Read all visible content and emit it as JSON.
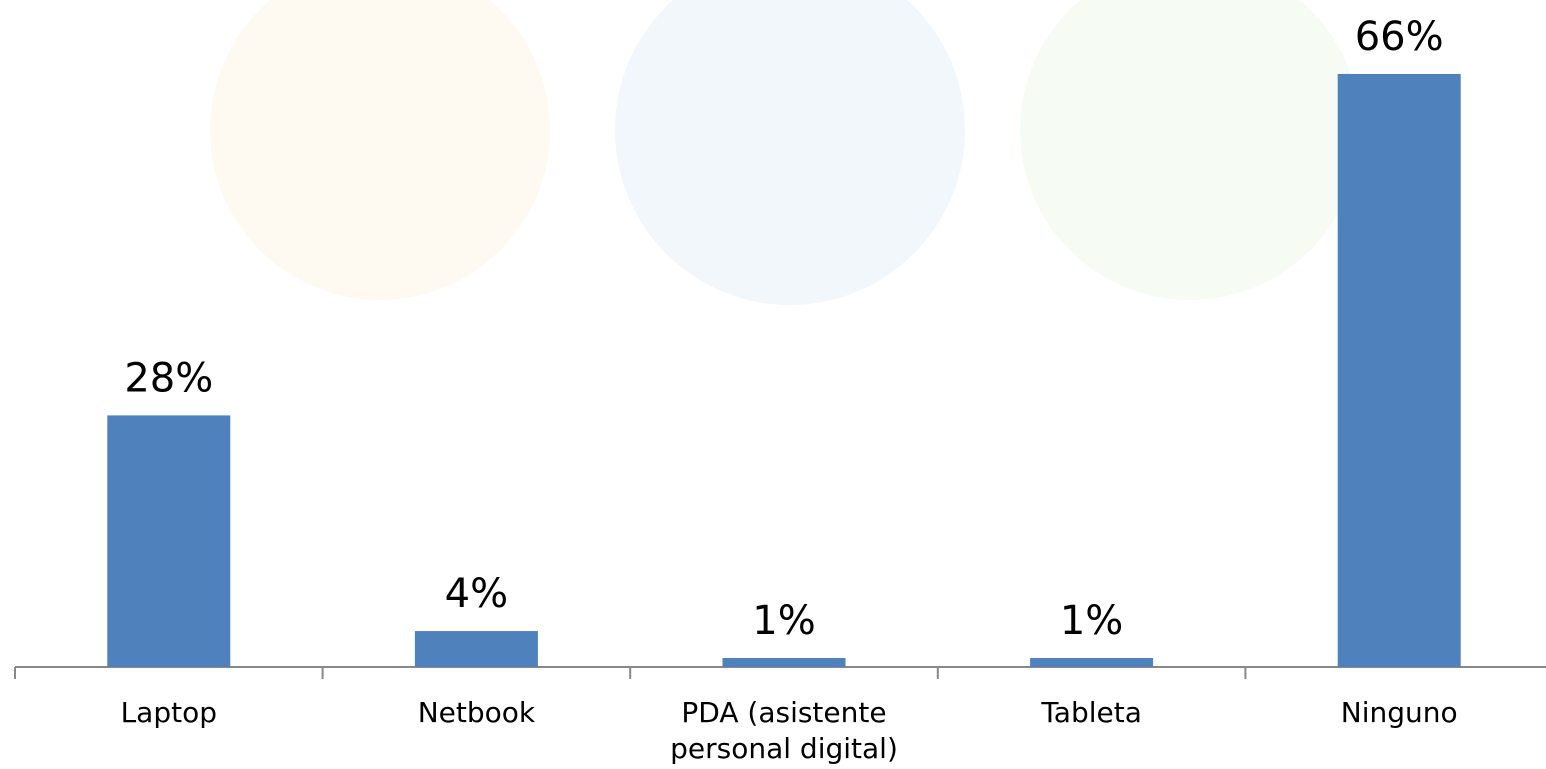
{
  "chart_data": {
    "type": "bar",
    "categories": [
      "Laptop",
      "Netbook",
      "PDA (asistente personal digital)",
      "Tableta",
      "Ninguno"
    ],
    "values": [
      28,
      4,
      1,
      1,
      66
    ],
    "value_labels": [
      "28%",
      "4%",
      "1%",
      "1%",
      "66%"
    ],
    "color": "#4f81bd",
    "ylim": [
      0,
      70
    ]
  }
}
